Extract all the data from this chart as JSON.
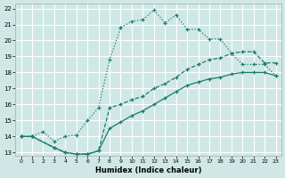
{
  "xlabel": "Humidex (Indice chaleur)",
  "bg_color": "#cfe8e5",
  "grid_color": "#ffffff",
  "line_color": "#1a7a6e",
  "xlim": [
    -0.5,
    23.5
  ],
  "ylim": [
    12.8,
    22.3
  ],
  "yticks": [
    13,
    14,
    15,
    16,
    17,
    18,
    19,
    20,
    21,
    22
  ],
  "xticks": [
    0,
    1,
    2,
    3,
    4,
    5,
    6,
    7,
    8,
    9,
    10,
    11,
    12,
    13,
    14,
    15,
    16,
    17,
    18,
    19,
    20,
    21,
    22,
    23
  ],
  "line1_x": [
    0,
    1,
    2,
    3,
    4,
    5,
    6,
    7,
    8,
    9,
    10,
    11,
    12,
    13,
    14,
    15,
    16,
    17,
    18,
    19,
    20,
    21,
    22,
    23
  ],
  "line1_y": [
    14.0,
    14.0,
    14.3,
    13.7,
    14.0,
    14.1,
    15.0,
    15.8,
    18.8,
    20.8,
    21.2,
    21.3,
    21.9,
    21.1,
    21.6,
    20.7,
    20.7,
    20.1,
    20.1,
    19.2,
    18.5,
    18.5,
    18.5,
    17.8
  ],
  "line2_x": [
    0,
    1,
    3,
    4,
    5,
    6,
    7,
    8,
    9,
    10,
    11,
    12,
    13,
    14,
    15,
    16,
    17,
    18,
    19,
    20,
    21,
    22,
    23
  ],
  "line2_y": [
    14.0,
    14.0,
    13.3,
    13.0,
    12.9,
    12.9,
    13.1,
    15.8,
    16.0,
    16.3,
    16.5,
    17.0,
    17.3,
    17.7,
    18.2,
    18.5,
    18.8,
    18.9,
    19.2,
    19.3,
    19.3,
    18.6,
    18.6
  ],
  "line3_x": [
    0,
    1,
    3,
    4,
    5,
    6,
    7,
    8,
    9,
    10,
    11,
    12,
    13,
    14,
    15,
    16,
    17,
    18,
    19,
    20,
    21,
    22,
    23
  ],
  "line3_y": [
    14.0,
    14.0,
    13.3,
    13.0,
    12.9,
    12.9,
    13.1,
    14.5,
    14.9,
    15.3,
    15.6,
    16.0,
    16.4,
    16.8,
    17.2,
    17.4,
    17.6,
    17.7,
    17.9,
    18.0,
    18.0,
    18.0,
    17.8
  ]
}
